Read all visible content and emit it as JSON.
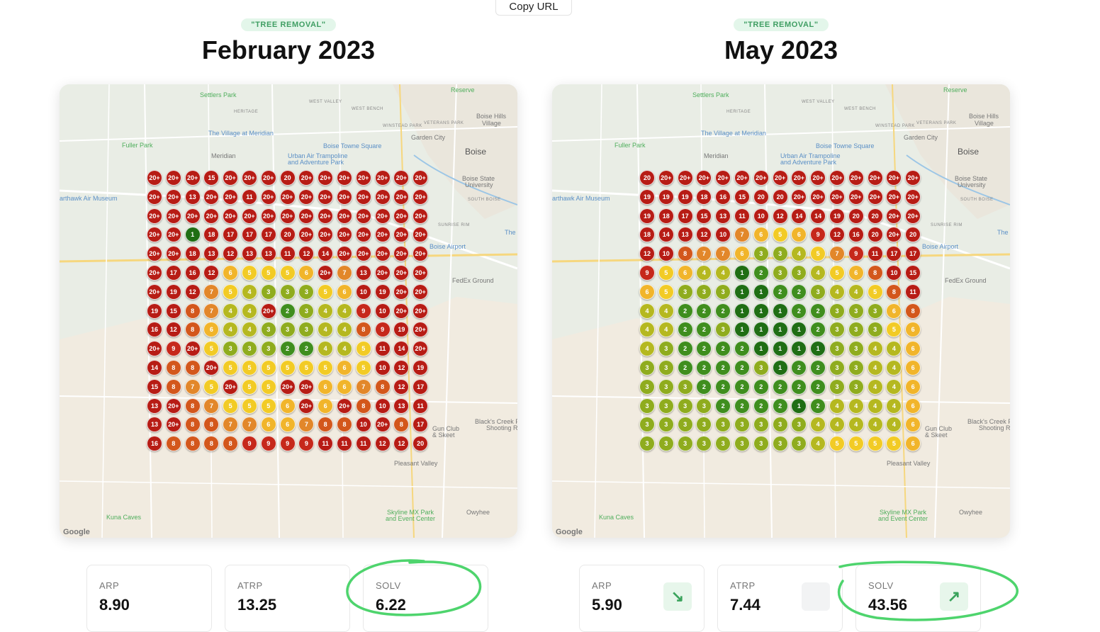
{
  "toolbar": {
    "copy_url_label": "Copy URL"
  },
  "colors": {
    "1": "#1f6e14",
    "2": "#3f8e1e",
    "3": "#8fac1e",
    "4": "#b5b820",
    "5": "#f2cb25",
    "6": "#f1b52b",
    "7": "#e2872a",
    "8": "#d3571c",
    "9": "#c6281b",
    "10+": "#b71c15",
    "highlight": "#4ed46d"
  },
  "panels": [
    {
      "badge": "\"TREE REMOVAL\"",
      "title": "February 2023",
      "map_labels": {
        "settlers_park": "Settlers Park",
        "reserve": "Reserve",
        "boise_hills": "Boise Hills",
        "village": "Village",
        "garden_city": "Garden City",
        "boise": "Boise",
        "fuller_park": "Fuller Park",
        "meridian": "Meridian",
        "village_meridian": "The Village at Meridian",
        "towne_square": "Boise Towne Square",
        "urban_air": "Urban Air Trampoline",
        "adventure_park": "and Adventure Park",
        "boise_state": "Boise State",
        "university": "University",
        "airport": "Boise Airport",
        "fedex": "FedEx Ground",
        "museum": "arthawk Air Museum",
        "gun_club": "Gun Club",
        "skeet": "& Skeet",
        "blacks_creek": "Black's Creek F",
        "shooting": "Shooting Ra",
        "pleasant_valley": "Pleasant Valley",
        "kuna_caves": "Kuna Caves",
        "skyline": "Skyline MX Park",
        "event_center": "and Event Center",
        "owyhee": "Owyhee",
        "google": "Google",
        "the": "The",
        "west_valley": "WEST VALLEY",
        "west_bench": "WEST BENCH",
        "winstead": "WINSTEAD PARK",
        "veterans": "VETERANS PARK",
        "heritage": "HERITAGE",
        "sunrise_rim": "SUNRISE RIM",
        "south_boise": "SOUTH BOISE"
      },
      "grid": [
        [
          "20+",
          "20+",
          "20+",
          "15",
          "20+",
          "20+",
          "20+",
          "20",
          "20+",
          "20+",
          "20+",
          "20+",
          "20+",
          "20+",
          "20+"
        ],
        [
          "20+",
          "20+",
          "13",
          "20+",
          "20+",
          "11",
          "20+",
          "20+",
          "20+",
          "20+",
          "20+",
          "20+",
          "20+",
          "20+",
          "20+"
        ],
        [
          "20+",
          "20+",
          "20+",
          "20+",
          "20+",
          "20+",
          "20+",
          "20+",
          "20+",
          "20+",
          "20+",
          "20+",
          "20+",
          "20+",
          "20+"
        ],
        [
          "20+",
          "20+",
          "1",
          "18",
          "17",
          "17",
          "17",
          "20",
          "20+",
          "20+",
          "20+",
          "20+",
          "20+",
          "20+",
          "20+"
        ],
        [
          "20+",
          "20+",
          "18",
          "13",
          "12",
          "13",
          "13",
          "11",
          "12",
          "14",
          "20+",
          "20+",
          "20+",
          "20+",
          "20+"
        ],
        [
          "20+",
          "17",
          "16",
          "12",
          "6",
          "5",
          "5",
          "5",
          "6",
          "20+",
          "7",
          "13",
          "20+",
          "20+",
          "20+"
        ],
        [
          "20+",
          "19",
          "12",
          "7",
          "5",
          "4",
          "3",
          "3",
          "3",
          "5",
          "6",
          "10",
          "19",
          "20+",
          "20+"
        ],
        [
          "19",
          "15",
          "8",
          "7",
          "4",
          "4",
          "20+",
          "2",
          "3",
          "4",
          "4",
          "9",
          "10",
          "20+",
          "20+"
        ],
        [
          "16",
          "12",
          "8",
          "6",
          "4",
          "4",
          "3",
          "3",
          "3",
          "4",
          "4",
          "8",
          "9",
          "19",
          "20+"
        ],
        [
          "20+",
          "9",
          "20+",
          "5",
          "3",
          "3",
          "3",
          "2",
          "2",
          "4",
          "4",
          "5",
          "11",
          "14",
          "20+"
        ],
        [
          "14",
          "8",
          "8",
          "20+",
          "5",
          "5",
          "5",
          "5",
          "5",
          "5",
          "6",
          "5",
          "10",
          "12",
          "19"
        ],
        [
          "15",
          "8",
          "7",
          "5",
          "20+",
          "5",
          "5",
          "20+",
          "20+",
          "6",
          "6",
          "7",
          "8",
          "12",
          "17"
        ],
        [
          "13",
          "20+",
          "8",
          "7",
          "5",
          "5",
          "5",
          "6",
          "20+",
          "6",
          "20+",
          "8",
          "10",
          "13",
          "11"
        ],
        [
          "13",
          "20+",
          "8",
          "8",
          "7",
          "7",
          "6",
          "6",
          "7",
          "8",
          "8",
          "10",
          "20+",
          "8",
          "17"
        ],
        [
          "16",
          "8",
          "8",
          "8",
          "8",
          "9",
          "9",
          "9",
          "9",
          "11",
          "11",
          "11",
          "12",
          "12",
          "20"
        ]
      ],
      "stats": [
        {
          "label": "ARP",
          "value": "8.90",
          "trend": ""
        },
        {
          "label": "ATRP",
          "value": "13.25",
          "trend": ""
        },
        {
          "label": "SOLV",
          "value": "6.22",
          "trend": ""
        }
      ]
    },
    {
      "badge": "\"TREE REMOVAL\"",
      "title": "May 2023",
      "map_labels": {
        "settlers_park": "Settlers Park",
        "reserve": "Reserve",
        "boise_hills": "Boise Hills",
        "village": "Village",
        "garden_city": "Garden City",
        "boise": "Boise",
        "fuller_park": "Fuller Park",
        "meridian": "Meridian",
        "village_meridian": "The Village at Meridian",
        "towne_square": "Boise Towne Square",
        "urban_air": "Urban Air Trampoline",
        "adventure_park": "and Adventure Park",
        "boise_state": "Boise State",
        "university": "University",
        "airport": "Boise Airport",
        "fedex": "FedEx Ground",
        "museum": "arthawk Air Museum",
        "gun_club": "Gun Club",
        "skeet": "& Skeet",
        "blacks_creek": "Black's Creek F",
        "shooting": "Shooting Ra",
        "pleasant_valley": "Pleasant Valley",
        "kuna_caves": "Kuna Caves",
        "skyline": "Skyline MX Park",
        "event_center": "and Event Center",
        "owyhee": "Owyhee",
        "google": "Google",
        "the": "The",
        "west_valley": "WEST VALLEY",
        "west_bench": "WEST BENCH",
        "winstead": "WINSTEAD PARK",
        "veterans": "VETERANS PARK",
        "heritage": "HERITAGE",
        "sunrise_rim": "SUNRISE RIM",
        "south_boise": "SOUTH BOISE"
      },
      "grid": [
        [
          "20",
          "20+",
          "20+",
          "20+",
          "20+",
          "20+",
          "20+",
          "20+",
          "20+",
          "20+",
          "20+",
          "20+",
          "20+",
          "20+",
          "20+"
        ],
        [
          "19",
          "19",
          "19",
          "18",
          "16",
          "15",
          "20",
          "20",
          "20+",
          "20+",
          "20+",
          "20+",
          "20+",
          "20+",
          "20+"
        ],
        [
          "19",
          "18",
          "17",
          "15",
          "13",
          "11",
          "10",
          "12",
          "14",
          "14",
          "19",
          "20",
          "20",
          "20+",
          "20+"
        ],
        [
          "18",
          "14",
          "13",
          "12",
          "10",
          "7",
          "6",
          "5",
          "6",
          "9",
          "12",
          "16",
          "20",
          "20+",
          "20"
        ],
        [
          "12",
          "10",
          "8",
          "7",
          "7",
          "6",
          "3",
          "3",
          "4",
          "5",
          "7",
          "9",
          "11",
          "17",
          "17"
        ],
        [
          "9",
          "5",
          "6",
          "4",
          "4",
          "1",
          "2",
          "3",
          "3",
          "4",
          "5",
          "6",
          "8",
          "10",
          "15"
        ],
        [
          "6",
          "5",
          "3",
          "3",
          "3",
          "1",
          "1",
          "2",
          "2",
          "3",
          "4",
          "4",
          "5",
          "8",
          "11"
        ],
        [
          "4",
          "4",
          "2",
          "2",
          "2",
          "1",
          "1",
          "1",
          "2",
          "2",
          "3",
          "3",
          "3",
          "6",
          "8"
        ],
        [
          "4",
          "4",
          "2",
          "2",
          "3",
          "1",
          "1",
          "1",
          "1",
          "2",
          "3",
          "3",
          "3",
          "5",
          "6"
        ],
        [
          "4",
          "3",
          "2",
          "2",
          "2",
          "2",
          "1",
          "1",
          "1",
          "1",
          "3",
          "3",
          "4",
          "4",
          "6"
        ],
        [
          "3",
          "3",
          "2",
          "2",
          "2",
          "2",
          "3",
          "1",
          "2",
          "2",
          "3",
          "3",
          "4",
          "4",
          "6"
        ],
        [
          "3",
          "3",
          "3",
          "2",
          "2",
          "2",
          "2",
          "2",
          "2",
          "2",
          "3",
          "3",
          "4",
          "4",
          "6"
        ],
        [
          "3",
          "3",
          "3",
          "3",
          "2",
          "2",
          "2",
          "2",
          "1",
          "2",
          "4",
          "4",
          "4",
          "4",
          "6"
        ],
        [
          "3",
          "3",
          "3",
          "3",
          "3",
          "3",
          "3",
          "3",
          "3",
          "4",
          "4",
          "4",
          "4",
          "4",
          "6"
        ],
        [
          "3",
          "3",
          "3",
          "3",
          "3",
          "3",
          "3",
          "3",
          "3",
          "4",
          "5",
          "5",
          "5",
          "5",
          "6"
        ]
      ],
      "stats": [
        {
          "label": "ARP",
          "value": "5.90",
          "trend": "↘"
        },
        {
          "label": "ATRP",
          "value": "7.44",
          "trend": ""
        },
        {
          "label": "SOLV",
          "value": "43.56",
          "trend": "↗"
        }
      ]
    }
  ]
}
